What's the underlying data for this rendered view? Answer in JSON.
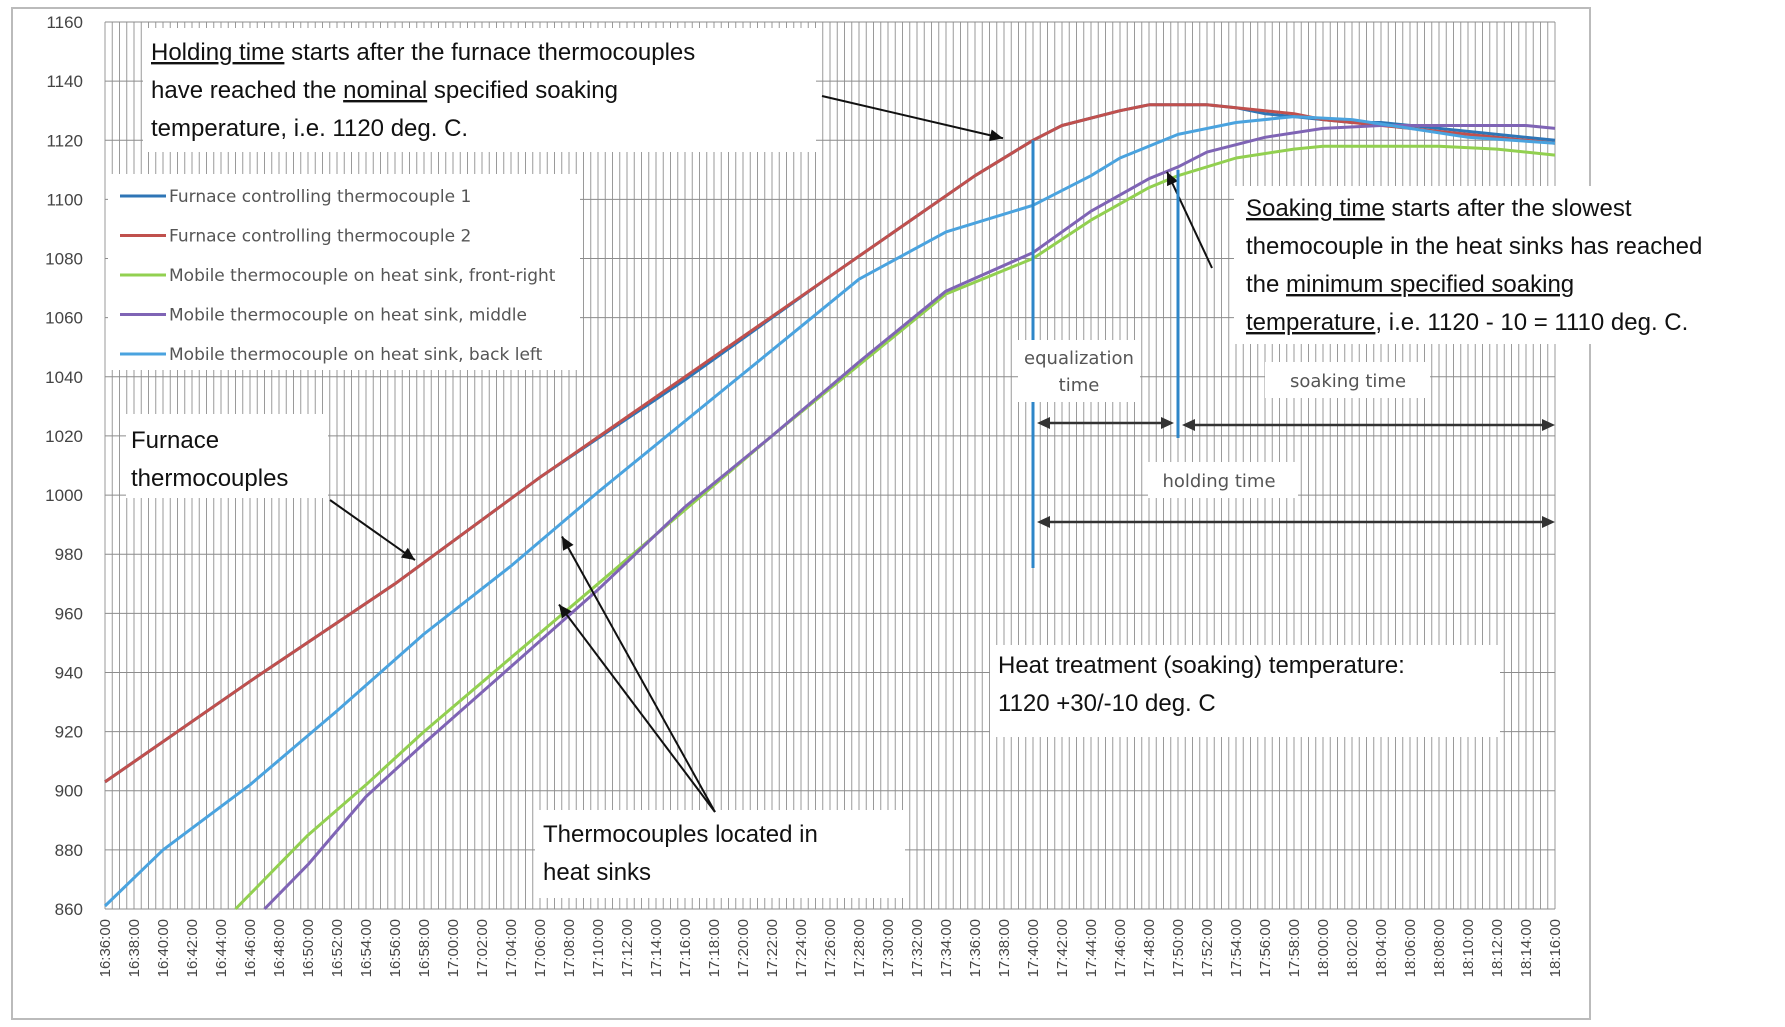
{
  "chart_data": {
    "type": "line",
    "title": "",
    "xlabel": "",
    "ylabel": "",
    "ylim": [
      860,
      1160
    ],
    "yticks": [
      860,
      880,
      900,
      920,
      940,
      960,
      980,
      1000,
      1020,
      1040,
      1060,
      1080,
      1100,
      1120,
      1140,
      1160
    ],
    "x_tick_labels": [
      "16:36:00",
      "16:38:00",
      "16:40:00",
      "16:42:00",
      "16:44:00",
      "16:46:00",
      "16:48:00",
      "16:50:00",
      "16:52:00",
      "16:54:00",
      "16:56:00",
      "16:58:00",
      "17:00:00",
      "17:02:00",
      "17:04:00",
      "17:06:00",
      "17:08:00",
      "17:10:00",
      "17:12:00",
      "17:14:00",
      "17:16:00",
      "17:18:00",
      "17:20:00",
      "17:22:00",
      "17:24:00",
      "17:26:00",
      "17:28:00",
      "17:30:00",
      "17:32:00",
      "17:34:00",
      "17:36:00",
      "17:38:00",
      "17:40:00",
      "17:42:00",
      "17:44:00",
      "17:46:00",
      "17:48:00",
      "17:50:00",
      "17:52:00",
      "17:54:00",
      "17:56:00",
      "17:58:00",
      "18:00:00",
      "18:02:00",
      "18:04:00",
      "18:06:00",
      "18:08:00",
      "18:10:00",
      "18:12:00",
      "18:14:00",
      "18:16:00"
    ],
    "grid": true,
    "legend_position": "upper-left",
    "series": [
      {
        "name": "Furnace controlling thermocouple 1",
        "color": "#2e75b6",
        "points": [
          [
            "16:36:00",
            903
          ],
          [
            "16:46:00",
            937
          ],
          [
            "16:56:00",
            970
          ],
          [
            "17:06:00",
            1006
          ],
          [
            "17:16:00",
            1039
          ],
          [
            "17:26:00",
            1074
          ],
          [
            "17:36:00",
            1108
          ],
          [
            "17:40:00",
            1120
          ],
          [
            "17:42:00",
            1125
          ],
          [
            "17:46:00",
            1130
          ],
          [
            "17:48:00",
            1132
          ],
          [
            "17:52:00",
            1132
          ],
          [
            "17:54:00",
            1131
          ],
          [
            "17:56:00",
            1129
          ],
          [
            "17:58:00",
            1128
          ],
          [
            "18:00:00",
            1127
          ],
          [
            "18:02:00",
            1126
          ],
          [
            "18:04:00",
            1126
          ],
          [
            "18:08:00",
            1124
          ],
          [
            "18:12:00",
            1122
          ],
          [
            "18:16:00",
            1120
          ]
        ]
      },
      {
        "name": "Furnace controlling thermocouple 2",
        "color": "#c0504d",
        "points": [
          [
            "16:36:00",
            903
          ],
          [
            "16:46:00",
            937
          ],
          [
            "16:56:00",
            970
          ],
          [
            "17:06:00",
            1006
          ],
          [
            "17:16:00",
            1040
          ],
          [
            "17:26:00",
            1074
          ],
          [
            "17:36:00",
            1108
          ],
          [
            "17:40:00",
            1120
          ],
          [
            "17:42:00",
            1125
          ],
          [
            "17:46:00",
            1130
          ],
          [
            "17:48:00",
            1132
          ],
          [
            "17:52:00",
            1132
          ],
          [
            "17:54:00",
            1131
          ],
          [
            "17:56:00",
            1130
          ],
          [
            "17:58:00",
            1129
          ],
          [
            "18:00:00",
            1127
          ],
          [
            "18:02:00",
            1126
          ],
          [
            "18:06:00",
            1124
          ],
          [
            "18:10:00",
            1122
          ],
          [
            "18:14:00",
            1120
          ],
          [
            "18:16:00",
            1119
          ]
        ]
      },
      {
        "name": "Mobile thermocouple on heat sink, front-right",
        "color": "#92d050",
        "points": [
          [
            "16:45:00",
            860
          ],
          [
            "16:48:00",
            875
          ],
          [
            "16:50:00",
            885
          ],
          [
            "16:54:00",
            902
          ],
          [
            "16:58:00",
            920
          ],
          [
            "17:04:00",
            945
          ],
          [
            "17:10:00",
            970
          ],
          [
            "17:16:00",
            995
          ],
          [
            "17:22:00",
            1020
          ],
          [
            "17:28:00",
            1044
          ],
          [
            "17:34:00",
            1068
          ],
          [
            "17:40:00",
            1080
          ],
          [
            "17:44:00",
            1093
          ],
          [
            "17:48:00",
            1104
          ],
          [
            "17:50:00",
            1108
          ],
          [
            "17:54:00",
            1114
          ],
          [
            "17:58:00",
            1117
          ],
          [
            "18:00:00",
            1118
          ],
          [
            "18:08:00",
            1118
          ],
          [
            "18:12:00",
            1117
          ],
          [
            "18:16:00",
            1115
          ]
        ]
      },
      {
        "name": "Mobile thermocouple on heat sink, middle",
        "color": "#7f64b5",
        "points": [
          [
            "16:47:00",
            860
          ],
          [
            "16:50:00",
            875
          ],
          [
            "16:54:00",
            898
          ],
          [
            "16:58:00",
            916
          ],
          [
            "17:04:00",
            942
          ],
          [
            "17:10:00",
            968
          ],
          [
            "17:16:00",
            996
          ],
          [
            "17:22:00",
            1020
          ],
          [
            "17:28:00",
            1045
          ],
          [
            "17:34:00",
            1069
          ],
          [
            "17:40:00",
            1082
          ],
          [
            "17:44:00",
            1096
          ],
          [
            "17:48:00",
            1107
          ],
          [
            "17:50:00",
            1111
          ],
          [
            "17:52:00",
            1116
          ],
          [
            "17:56:00",
            1121
          ],
          [
            "18:00:00",
            1124
          ],
          [
            "18:04:00",
            1125
          ],
          [
            "18:10:00",
            1125
          ],
          [
            "18:14:00",
            1125
          ],
          [
            "18:16:00",
            1124
          ]
        ]
      },
      {
        "name": "Mobile thermocouple on heat sink, back left",
        "color": "#4aa3df",
        "points": [
          [
            "16:36:00",
            861
          ],
          [
            "16:40:00",
            880
          ],
          [
            "16:46:00",
            902
          ],
          [
            "16:52:00",
            927
          ],
          [
            "16:58:00",
            953
          ],
          [
            "17:04:00",
            976
          ],
          [
            "17:10:00",
            1001
          ],
          [
            "17:16:00",
            1025
          ],
          [
            "17:22:00",
            1049
          ],
          [
            "17:28:00",
            1073
          ],
          [
            "17:34:00",
            1089
          ],
          [
            "17:40:00",
            1098
          ],
          [
            "17:44:00",
            1108
          ],
          [
            "17:46:00",
            1114
          ],
          [
            "17:50:00",
            1122
          ],
          [
            "17:54:00",
            1126
          ],
          [
            "17:58:00",
            1128
          ],
          [
            "18:02:00",
            1127
          ],
          [
            "18:06:00",
            1124
          ],
          [
            "18:10:00",
            1121
          ],
          [
            "18:16:00",
            1119
          ]
        ]
      }
    ],
    "markers": {
      "holding_start": "17:40:00",
      "soaking_start": "17:50:00"
    },
    "annotations": {
      "holding_note": {
        "lines": [
          [
            {
              "t": "Holding time",
              "u": true
            },
            {
              "t": " starts after the furnace thermocouples",
              "u": false
            }
          ],
          [
            {
              "t": "have reached the ",
              "u": false
            },
            {
              "t": "nominal",
              "u": true
            },
            {
              "t": " specified soaking",
              "u": false
            }
          ],
          [
            {
              "t": "temperature, i.e. 1120 deg. C.",
              "u": false
            }
          ]
        ]
      },
      "soaking_note": {
        "lines": [
          [
            {
              "t": "Soaking time",
              "u": true
            },
            {
              "t": " starts after the slowest",
              "u": false
            }
          ],
          [
            {
              "t": "themocouple in the heat sinks has reached",
              "u": false
            }
          ],
          [
            {
              "t": "the ",
              "u": false
            },
            {
              "t": "minimum specified soaking ",
              "u": true
            }
          ],
          [
            {
              "t": "temperature",
              "u": true
            },
            {
              "t": ", i.e. 1120 - 10 = 1110 deg. C.",
              "u": false
            }
          ]
        ]
      },
      "furnace_label": [
        "Furnace",
        "thermocouples"
      ],
      "heat_sinks_label": [
        "Thermocouples located in",
        "heat sinks"
      ],
      "setpoint_label": [
        "Heat treatment (soaking) temperature:",
        "1120 +30/-10 deg. C"
      ],
      "equalization_label": [
        "equalization",
        "time"
      ],
      "soaking_time_label": "soaking time",
      "holding_time_label": "holding time"
    }
  }
}
